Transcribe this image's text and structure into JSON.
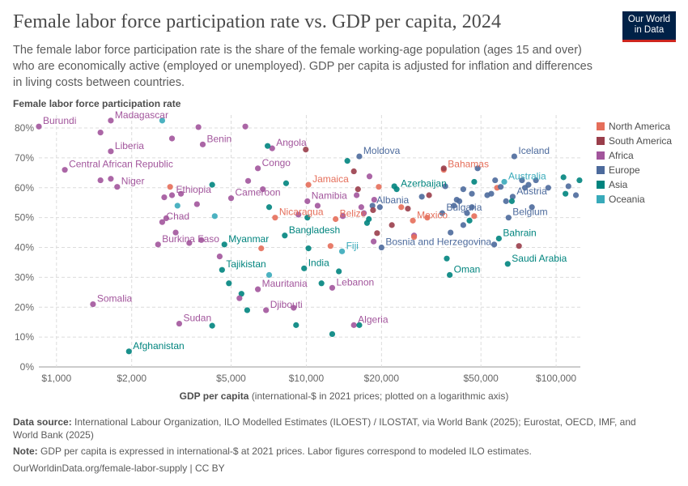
{
  "header": {
    "title": "Female labor force participation rate vs. GDP per capita, 2024",
    "subtitle": "The female labor force participation rate is the share of the female working-age population (ages 15 and over) who are economically active (employed or unemployed). GDP per capita is adjusted for inflation and differences in living costs between countries.",
    "logo_line1": "Our World",
    "logo_line2": "in Data"
  },
  "axes": {
    "y_title": "Female labor force participation rate",
    "x_title": "GDP per capita",
    "x_title_note": "(international-$ in 2021 prices; plotted on a logarithmic axis)"
  },
  "footer": {
    "source_label": "Data source:",
    "source_text": "International Labour Organization, ILO Modelled Estimates (ILOEST) / ILOSTAT, via World Bank (2025); Eurostat, OECD, IMF, and World Bank (2025)",
    "note_label": "Note:",
    "note_text": "GDP per capita is expressed in international-$ at 2021 prices. Labor figures correspond to modeled ILO estimates.",
    "url": "OurWorldinData.org/female-labor-supply | CC BY"
  },
  "colors": {
    "North America": "#e56e5a",
    "South America": "#9a3e4b",
    "Africa": "#a2559c",
    "Europe": "#4c6a9c",
    "Asia": "#00847e",
    "Oceania": "#38aaba"
  },
  "chart_data": {
    "type": "scatter",
    "x_scale": "log",
    "xlim": [
      850,
      125000
    ],
    "ylim": [
      0,
      83
    ],
    "x_ticks": [
      1000,
      2000,
      5000,
      10000,
      20000,
      50000,
      100000
    ],
    "x_tick_labels": [
      "$1,000",
      "$2,000",
      "$5,000",
      "$10,000",
      "$20,000",
      "$50,000",
      "$100,000"
    ],
    "y_ticks": [
      0,
      10,
      20,
      30,
      40,
      50,
      60,
      70,
      80
    ],
    "y_tick_labels": [
      "0%",
      "10%",
      "20%",
      "30%",
      "40%",
      "50%",
      "60%",
      "70%",
      "80%"
    ],
    "grid": true,
    "legend_position": "right",
    "legend": [
      "North America",
      "South America",
      "Africa",
      "Europe",
      "Asia",
      "Oceania"
    ],
    "points": [
      {
        "label": "Burundi",
        "x": 850,
        "y": 80.5,
        "region": "Africa"
      },
      {
        "label": "Madagascar",
        "x": 1650,
        "y": 82.5,
        "region": "Africa"
      },
      {
        "label": "",
        "x": 1500,
        "y": 78.5,
        "region": "Africa"
      },
      {
        "label": "Liberia",
        "x": 1650,
        "y": 72.2,
        "region": "Africa"
      },
      {
        "label": "Central African Republic",
        "x": 1080,
        "y": 66.0,
        "region": "Africa"
      },
      {
        "label": "Niger",
        "x": 1750,
        "y": 60.3,
        "region": "Africa"
      },
      {
        "label": "",
        "x": 1500,
        "y": 62.5,
        "region": "Africa"
      },
      {
        "label": "",
        "x": 1650,
        "y": 63.0,
        "region": "Africa"
      },
      {
        "label": "Somalia",
        "x": 1400,
        "y": 21.0,
        "region": "Africa"
      },
      {
        "label": "Afghanistan",
        "x": 1950,
        "y": 5.2,
        "region": "Asia"
      },
      {
        "label": "",
        "x": 2650,
        "y": 82.5,
        "region": "Oceania"
      },
      {
        "label": "",
        "x": 2900,
        "y": 76.5,
        "region": "Africa"
      },
      {
        "label": "",
        "x": 3700,
        "y": 80.3,
        "region": "Africa"
      },
      {
        "label": "Benin",
        "x": 3850,
        "y": 74.5,
        "region": "Africa"
      },
      {
        "label": "Ethiopia",
        "x": 2900,
        "y": 57.5,
        "region": "Africa"
      },
      {
        "label": "",
        "x": 2850,
        "y": 60.3,
        "region": "North America"
      },
      {
        "label": "",
        "x": 2700,
        "y": 56.8,
        "region": "Africa"
      },
      {
        "label": "",
        "x": 3150,
        "y": 58.0,
        "region": "Africa"
      },
      {
        "label": "",
        "x": 3050,
        "y": 54.0,
        "region": "Oceania"
      },
      {
        "label": "",
        "x": 3650,
        "y": 54.5,
        "region": "Africa"
      },
      {
        "label": "",
        "x": 4200,
        "y": 61.0,
        "region": "Asia"
      },
      {
        "label": "Chad",
        "x": 2650,
        "y": 48.5,
        "region": "Africa"
      },
      {
        "label": "",
        "x": 2750,
        "y": 49.8,
        "region": "Africa"
      },
      {
        "label": "",
        "x": 4300,
        "y": 50.5,
        "region": "Oceania"
      },
      {
        "label": "Burkina Faso",
        "x": 2550,
        "y": 41.0,
        "region": "Africa"
      },
      {
        "label": "",
        "x": 3000,
        "y": 45.0,
        "region": "Africa"
      },
      {
        "label": "",
        "x": 3400,
        "y": 41.5,
        "region": "Africa"
      },
      {
        "label": "",
        "x": 4500,
        "y": 37.0,
        "region": "Africa"
      },
      {
        "label": "",
        "x": 3800,
        "y": 42.5,
        "region": "Africa"
      },
      {
        "label": "Sudan",
        "x": 3100,
        "y": 14.5,
        "region": "Africa"
      },
      {
        "label": "",
        "x": 4200,
        "y": 13.8,
        "region": "Asia"
      },
      {
        "label": "",
        "x": 5700,
        "y": 80.5,
        "region": "Africa"
      },
      {
        "label": "Angola",
        "x": 7300,
        "y": 73.2,
        "region": "Africa"
      },
      {
        "label": "",
        "x": 7000,
        "y": 74.0,
        "region": "Asia"
      },
      {
        "label": "",
        "x": 9950,
        "y": 72.8,
        "region": "South America"
      },
      {
        "label": "Congo",
        "x": 6400,
        "y": 66.5,
        "region": "Africa"
      },
      {
        "label": "",
        "x": 5850,
        "y": 62.3,
        "region": "Africa"
      },
      {
        "label": "Cameroon",
        "x": 5000,
        "y": 56.5,
        "region": "Africa"
      },
      {
        "label": "",
        "x": 6700,
        "y": 59.5,
        "region": "Africa"
      },
      {
        "label": "",
        "x": 8300,
        "y": 61.5,
        "region": "Asia"
      },
      {
        "label": "",
        "x": 7100,
        "y": 53.5,
        "region": "Asia"
      },
      {
        "label": "Nicaragua",
        "x": 7500,
        "y": 50.0,
        "region": "North America"
      },
      {
        "label": "",
        "x": 9300,
        "y": 51.0,
        "region": "Africa"
      },
      {
        "label": "",
        "x": 10100,
        "y": 50.0,
        "region": "Asia"
      },
      {
        "label": "Myanmar",
        "x": 4700,
        "y": 41.0,
        "region": "Asia"
      },
      {
        "label": "",
        "x": 6600,
        "y": 39.7,
        "region": "North America"
      },
      {
        "label": "Bangladesh",
        "x": 8200,
        "y": 44.0,
        "region": "Asia"
      },
      {
        "label": "Tajikistan",
        "x": 4600,
        "y": 32.5,
        "region": "Asia"
      },
      {
        "label": "",
        "x": 4900,
        "y": 28.0,
        "region": "Asia"
      },
      {
        "label": "",
        "x": 5500,
        "y": 24.5,
        "region": "Asia"
      },
      {
        "label": "",
        "x": 5400,
        "y": 23.0,
        "region": "Africa"
      },
      {
        "label": "",
        "x": 5800,
        "y": 19.0,
        "region": "Asia"
      },
      {
        "label": "",
        "x": 7100,
        "y": 30.8,
        "region": "Oceania"
      },
      {
        "label": "Mauritania",
        "x": 6400,
        "y": 26.0,
        "region": "Africa"
      },
      {
        "label": "Djibouti",
        "x": 6900,
        "y": 19.0,
        "region": "Africa"
      },
      {
        "label": "",
        "x": 8900,
        "y": 19.8,
        "region": "Africa"
      },
      {
        "label": "",
        "x": 9100,
        "y": 14.0,
        "region": "Asia"
      },
      {
        "label": "Jamaica",
        "x": 10200,
        "y": 61.0,
        "region": "North America"
      },
      {
        "label": "Namibia",
        "x": 10100,
        "y": 55.5,
        "region": "Africa"
      },
      {
        "label": "",
        "x": 11100,
        "y": 54.0,
        "region": "Africa"
      },
      {
        "label": "",
        "x": 10200,
        "y": 39.7,
        "region": "Asia"
      },
      {
        "label": "India",
        "x": 9800,
        "y": 33.0,
        "region": "Asia"
      },
      {
        "label": "",
        "x": 11500,
        "y": 28.0,
        "region": "Asia"
      },
      {
        "label": "",
        "x": 12500,
        "y": 40.5,
        "region": "North America"
      },
      {
        "label": "Lebanon",
        "x": 12700,
        "y": 26.5,
        "region": "Africa"
      },
      {
        "label": "",
        "x": 13500,
        "y": 32.0,
        "region": "Asia"
      },
      {
        "label": "",
        "x": 12700,
        "y": 11.0,
        "region": "Asia"
      },
      {
        "label": "Fiji",
        "x": 13900,
        "y": 38.7,
        "region": "Oceania"
      },
      {
        "label": "Belize",
        "x": 13100,
        "y": 49.5,
        "region": "North America"
      },
      {
        "label": "",
        "x": 14000,
        "y": 50.5,
        "region": "Africa"
      },
      {
        "label": "Moldova",
        "x": 16300,
        "y": 70.5,
        "region": "Europe"
      },
      {
        "label": "",
        "x": 14600,
        "y": 69.0,
        "region": "Asia"
      },
      {
        "label": "",
        "x": 15500,
        "y": 65.5,
        "region": "South America"
      },
      {
        "label": "",
        "x": 16100,
        "y": 59.5,
        "region": "South America"
      },
      {
        "label": "",
        "x": 17900,
        "y": 63.8,
        "region": "Africa"
      },
      {
        "label": "",
        "x": 15900,
        "y": 57.5,
        "region": "Africa"
      },
      {
        "label": "",
        "x": 16600,
        "y": 53.5,
        "region": "Africa"
      },
      {
        "label": "",
        "x": 17000,
        "y": 51.5,
        "region": "Africa"
      },
      {
        "label": "Albania",
        "x": 18400,
        "y": 54.0,
        "region": "Europe"
      },
      {
        "label": "",
        "x": 18700,
        "y": 56.0,
        "region": "Africa"
      },
      {
        "label": "",
        "x": 19500,
        "y": 60.3,
        "region": "North America"
      },
      {
        "label": "",
        "x": 18500,
        "y": 52.5,
        "region": "South America"
      },
      {
        "label": "",
        "x": 19700,
        "y": 53.5,
        "region": "Europe"
      },
      {
        "label": "",
        "x": 17800,
        "y": 49.5,
        "region": "Asia"
      },
      {
        "label": "",
        "x": 17500,
        "y": 48.2,
        "region": "Asia"
      },
      {
        "label": "",
        "x": 19200,
        "y": 44.8,
        "region": "South America"
      },
      {
        "label": "",
        "x": 18600,
        "y": 42.0,
        "region": "Africa"
      },
      {
        "label": "Bosnia and Herzegovina",
        "x": 20000,
        "y": 40.0,
        "region": "Europe"
      },
      {
        "label": "Algeria",
        "x": 15500,
        "y": 14.0,
        "region": "Africa"
      },
      {
        "label": "",
        "x": 16300,
        "y": 14.0,
        "region": "Asia"
      },
      {
        "label": "Azerbaijan",
        "x": 23000,
        "y": 59.5,
        "region": "Asia"
      },
      {
        "label": "",
        "x": 22500,
        "y": 60.5,
        "region": "Asia"
      },
      {
        "label": "",
        "x": 24000,
        "y": 53.5,
        "region": "North America"
      },
      {
        "label": "",
        "x": 25500,
        "y": 53.0,
        "region": "South America"
      },
      {
        "label": "Mexico",
        "x": 26700,
        "y": 49.0,
        "region": "North America"
      },
      {
        "label": "",
        "x": 22000,
        "y": 47.5,
        "region": "South America"
      },
      {
        "label": "",
        "x": 27000,
        "y": 44.0,
        "region": "Africa"
      },
      {
        "label": "",
        "x": 27000,
        "y": 43.5,
        "region": "North America"
      },
      {
        "label": "",
        "x": 29000,
        "y": 57.0,
        "region": "Europe"
      },
      {
        "label": "",
        "x": 30500,
        "y": 50.0,
        "region": "North America"
      },
      {
        "label": "",
        "x": 31000,
        "y": 57.5,
        "region": "South America"
      },
      {
        "label": "Bahamas",
        "x": 35500,
        "y": 66.0,
        "region": "North America"
      },
      {
        "label": "",
        "x": 35500,
        "y": 66.5,
        "region": "South America"
      },
      {
        "label": "Bulgaria",
        "x": 35000,
        "y": 51.5,
        "region": "Europe"
      },
      {
        "label": "",
        "x": 36000,
        "y": 60.5,
        "region": "Europe"
      },
      {
        "label": "",
        "x": 36500,
        "y": 36.3,
        "region": "Asia"
      },
      {
        "label": "Oman",
        "x": 37500,
        "y": 30.8,
        "region": "Asia"
      },
      {
        "label": "",
        "x": 37800,
        "y": 45.0,
        "region": "Europe"
      },
      {
        "label": "",
        "x": 39000,
        "y": 54.0,
        "region": "Europe"
      },
      {
        "label": "",
        "x": 40000,
        "y": 56.0,
        "region": "Europe"
      },
      {
        "label": "",
        "x": 41000,
        "y": 55.5,
        "region": "Europe"
      },
      {
        "label": "",
        "x": 42500,
        "y": 59.5,
        "region": "Europe"
      },
      {
        "label": "",
        "x": 42500,
        "y": 47.5,
        "region": "Europe"
      },
      {
        "label": "",
        "x": 44000,
        "y": 51.5,
        "region": "Europe"
      },
      {
        "label": "",
        "x": 45000,
        "y": 49.0,
        "region": "Asia"
      },
      {
        "label": "",
        "x": 46000,
        "y": 53.5,
        "region": "Europe"
      },
      {
        "label": "",
        "x": 46000,
        "y": 58.0,
        "region": "Europe"
      },
      {
        "label": "",
        "x": 47000,
        "y": 50.5,
        "region": "North America"
      },
      {
        "label": "",
        "x": 47000,
        "y": 62.0,
        "region": "Asia"
      },
      {
        "label": "",
        "x": 48500,
        "y": 66.5,
        "region": "Europe"
      },
      {
        "label": "",
        "x": 53000,
        "y": 57.5,
        "region": "Europe"
      },
      {
        "label": "",
        "x": 55000,
        "y": 58.0,
        "region": "Europe"
      },
      {
        "label": "",
        "x": 57000,
        "y": 62.5,
        "region": "Europe"
      },
      {
        "label": "",
        "x": 56500,
        "y": 41.0,
        "region": "Europe"
      },
      {
        "label": "",
        "x": 58000,
        "y": 60.0,
        "region": "North America"
      },
      {
        "label": "",
        "x": 60000,
        "y": 60.3,
        "region": "Europe"
      },
      {
        "label": "Bahrain",
        "x": 59000,
        "y": 43.0,
        "region": "Asia"
      },
      {
        "label": "Australia",
        "x": 62000,
        "y": 62.0,
        "region": "Oceania"
      },
      {
        "label": "",
        "x": 63000,
        "y": 55.5,
        "region": "Europe"
      },
      {
        "label": "Austria",
        "x": 67000,
        "y": 57.0,
        "region": "Europe"
      },
      {
        "label": "Saudi Arabia",
        "x": 64000,
        "y": 34.5,
        "region": "Asia"
      },
      {
        "label": "Iceland",
        "x": 68000,
        "y": 70.5,
        "region": "Europe"
      },
      {
        "label": "Belgium",
        "x": 64500,
        "y": 50.0,
        "region": "Europe"
      },
      {
        "label": "",
        "x": 66500,
        "y": 55.5,
        "region": "Asia"
      },
      {
        "label": "",
        "x": 71000,
        "y": 40.5,
        "region": "South America"
      },
      {
        "label": "",
        "x": 73000,
        "y": 62.5,
        "region": "Europe"
      },
      {
        "label": "",
        "x": 75000,
        "y": 60.0,
        "region": "Europe"
      },
      {
        "label": "",
        "x": 77500,
        "y": 61.0,
        "region": "Europe"
      },
      {
        "label": "",
        "x": 80000,
        "y": 53.5,
        "region": "Europe"
      },
      {
        "label": "",
        "x": 83000,
        "y": 62.5,
        "region": "Europe"
      },
      {
        "label": "",
        "x": 93000,
        "y": 60.0,
        "region": "Europe"
      },
      {
        "label": "",
        "x": 107000,
        "y": 63.5,
        "region": "Asia"
      },
      {
        "label": "",
        "x": 109000,
        "y": 58.0,
        "region": "Asia"
      },
      {
        "label": "",
        "x": 112000,
        "y": 60.5,
        "region": "Europe"
      },
      {
        "label": "",
        "x": 120000,
        "y": 57.5,
        "region": "Europe"
      },
      {
        "label": "",
        "x": 124000,
        "y": 62.5,
        "region": "Asia"
      }
    ]
  }
}
